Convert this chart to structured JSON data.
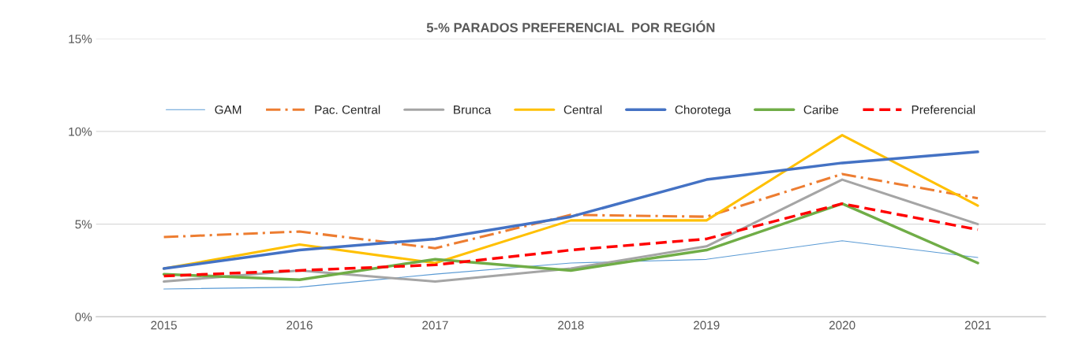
{
  "chart_data": {
    "type": "line",
    "title": "5-% PARADOS PREFERENCIAL  POR REGIÓN",
    "categories": [
      "2015",
      "2016",
      "2017",
      "2018",
      "2019",
      "2020",
      "2021"
    ],
    "series": [
      {
        "name": "GAM",
        "color": "#5b9bd5",
        "values": [
          1.5,
          1.6,
          2.3,
          2.9,
          3.1,
          4.1,
          3.2
        ],
        "line_style": "solid"
      },
      {
        "name": "Pac. Central",
        "color": "#ed7d31",
        "values": [
          4.3,
          4.6,
          3.7,
          5.5,
          5.4,
          7.7,
          6.4
        ],
        "line_style": "dashdot"
      },
      {
        "name": "Brunca",
        "color": "#a5a5a5",
        "values": [
          1.9,
          2.5,
          1.9,
          2.6,
          3.8,
          7.4,
          5.0
        ],
        "line_style": "solid"
      },
      {
        "name": "Central",
        "color": "#ffc000",
        "values": [
          2.6,
          3.9,
          2.9,
          5.2,
          5.2,
          9.8,
          6.0
        ],
        "line_style": "solid"
      },
      {
        "name": "Chorotega",
        "color": "#4472c4",
        "values": [
          2.6,
          3.6,
          4.2,
          5.4,
          7.4,
          8.3,
          8.9
        ],
        "line_style": "solid"
      },
      {
        "name": "Caribe",
        "color": "#70ad47",
        "values": [
          2.3,
          2.0,
          3.1,
          2.5,
          3.6,
          6.1,
          2.9
        ],
        "line_style": "solid"
      },
      {
        "name": "Preferencial",
        "color": "#ff0000",
        "values": [
          2.2,
          2.5,
          2.8,
          3.6,
          4.2,
          6.1,
          4.7
        ],
        "line_style": "dashed"
      }
    ],
    "ylim": [
      0,
      15
    ],
    "yticks": [
      {
        "value": 0,
        "label": "0%"
      },
      {
        "value": 5,
        "label": "5%"
      },
      {
        "value": 10,
        "label": "10%"
      },
      {
        "value": 15,
        "label": "15%"
      }
    ],
    "grid": "y",
    "legend": "top",
    "marker": "none"
  }
}
